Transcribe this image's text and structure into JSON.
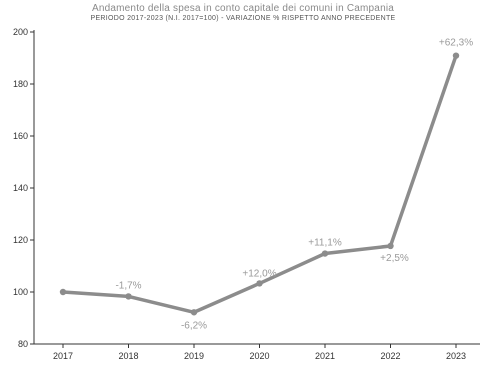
{
  "chart_data": {
    "type": "line",
    "title": "Andamento della spesa in conto capitale dei comuni in Campania",
    "subtitle": "PERIODO 2017-2023 (N.I. 2017=100) - VARIAZIONE % RISPETTO ANNO PRECEDENTE",
    "x": [
      "2017",
      "2018",
      "2019",
      "2020",
      "2021",
      "2022",
      "2023"
    ],
    "values": [
      100,
      98.3,
      92.2,
      103.3,
      114.8,
      117.7,
      190.9
    ],
    "point_labels": [
      "",
      "-1,7%",
      "-6,2%",
      "+12,0%",
      "+11,1%",
      "+2,5%",
      "+62,3%"
    ],
    "ylim": [
      80,
      200
    ],
    "yticks": [
      80,
      100,
      120,
      140,
      160,
      180,
      200
    ],
    "grid": false,
    "line_color": "#8c8c8c",
    "label_color": "#9a9a9a"
  }
}
